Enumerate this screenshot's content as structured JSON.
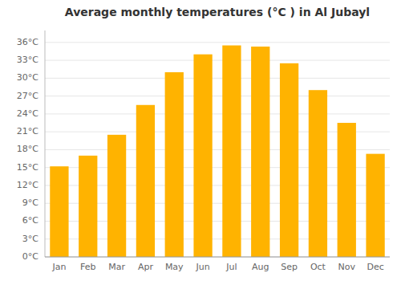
{
  "chart_data": {
    "type": "bar",
    "title": "Average monthly temperatures (°C ) in Al Jubayl",
    "categories": [
      "Jan",
      "Feb",
      "Mar",
      "Apr",
      "May",
      "Jun",
      "Jul",
      "Aug",
      "Sep",
      "Oct",
      "Nov",
      "Dec"
    ],
    "values": [
      15.2,
      17.0,
      20.5,
      25.5,
      31.0,
      34.0,
      35.5,
      35.3,
      32.5,
      28.0,
      22.5,
      17.3
    ],
    "color": "#FFB300",
    "ylim": [
      0,
      38
    ],
    "yticks": [
      {
        "value": 0,
        "label": "0°C"
      },
      {
        "value": 3,
        "label": "3°C"
      },
      {
        "value": 6,
        "label": "6°C"
      },
      {
        "value": 9,
        "label": "9°C"
      },
      {
        "value": 12,
        "label": "12°C"
      },
      {
        "value": 15,
        "label": "15°C"
      },
      {
        "value": 18,
        "label": "18°C"
      },
      {
        "value": 21,
        "label": "21°C"
      },
      {
        "value": 24,
        "label": "24°C"
      },
      {
        "value": 27,
        "label": "27°C"
      },
      {
        "value": 30,
        "label": "30°C"
      },
      {
        "value": 33,
        "label": "33°C"
      },
      {
        "value": 36,
        "label": "36°C"
      }
    ],
    "grid": true
  }
}
